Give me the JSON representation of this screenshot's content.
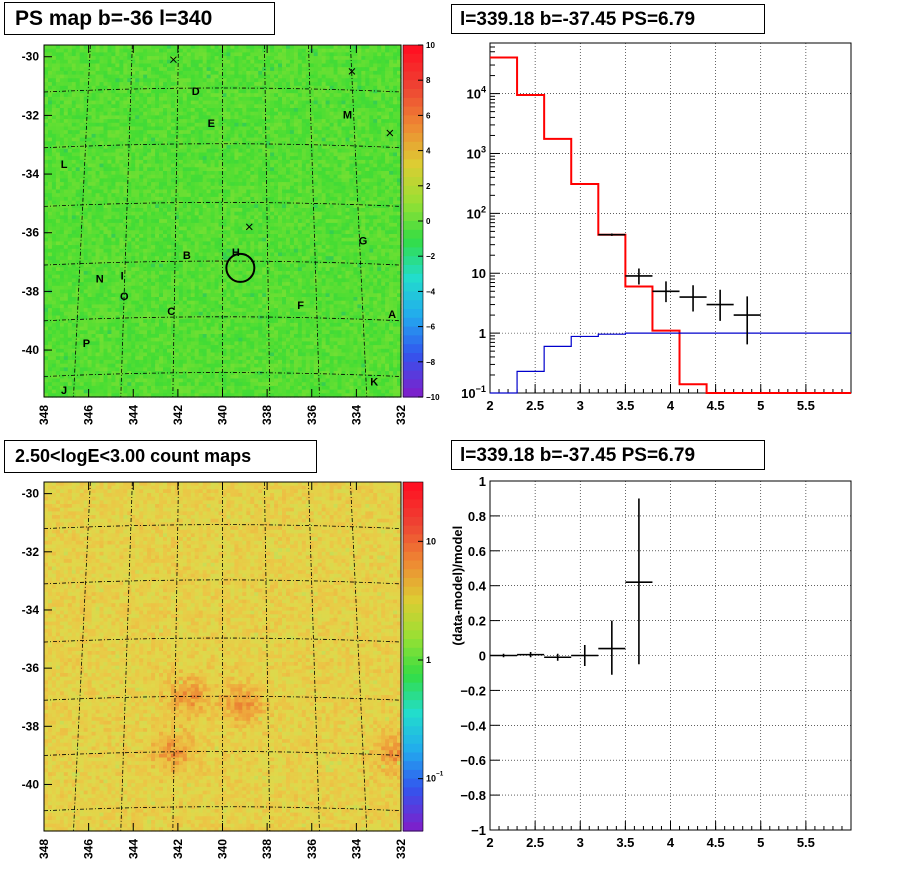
{
  "titles": {
    "ps_map": "PS map b=-36 l=340",
    "spectrum": "l=339.18 b=-37.45 PS=6.79",
    "count_map": "2.50<logE<3.00 count maps",
    "residual": "l=339.18 b=-37.45 PS=6.79"
  },
  "colors": {
    "model_line": "#ff0000",
    "background_line": "#0000cc",
    "data_points": "#000000",
    "ps_map_base": "#33dd33",
    "count_map_base": "#e8c840"
  },
  "chart_data": [
    {
      "type": "heatmap",
      "id": "ps_map",
      "title": "PS map b=-36 l=340",
      "x_ticks": [
        "348",
        "346",
        "344",
        "342",
        "340",
        "338",
        "336",
        "334",
        "332"
      ],
      "y_ticks": [
        "-30",
        "-32",
        "-34",
        "-36",
        "-38",
        "-40"
      ],
      "xlim": [
        348,
        332
      ],
      "ylim": [
        -41.6,
        -29.6
      ],
      "colorbar": {
        "range": [
          -10,
          10
        ],
        "ticks": [
          "10",
          "8",
          "6",
          "4",
          "2",
          "0",
          "−2",
          "−4",
          "−6",
          "−8",
          "−10"
        ]
      },
      "sources": [
        {
          "label": "D",
          "l": 341.2,
          "b": -31.3
        },
        {
          "label": "E",
          "l": 340.5,
          "b": -32.4
        },
        {
          "label": "M",
          "l": 334.4,
          "b": -32.1
        },
        {
          "label": "L",
          "l": 347.1,
          "b": -33.8
        },
        {
          "label": "G",
          "l": 333.7,
          "b": -36.4
        },
        {
          "label": "B",
          "l": 341.6,
          "b": -36.9
        },
        {
          "label": "H",
          "l": 339.4,
          "b": -36.8
        },
        {
          "label": "N",
          "l": 345.5,
          "b": -37.7
        },
        {
          "label": "I",
          "l": 344.5,
          "b": -37.6
        },
        {
          "label": "O",
          "l": 344.4,
          "b": -38.3
        },
        {
          "label": "C",
          "l": 342.3,
          "b": -38.8
        },
        {
          "label": "F",
          "l": 336.5,
          "b": -38.6
        },
        {
          "label": "A",
          "l": 332.4,
          "b": -38.9
        },
        {
          "label": "P",
          "l": 346.1,
          "b": -39.9
        },
        {
          "label": "K",
          "l": 333.2,
          "b": -41.2
        },
        {
          "label": "J",
          "l": 347.1,
          "b": -41.5
        }
      ],
      "crosses": [
        {
          "l": 342.2,
          "b": -30.1
        },
        {
          "l": 334.2,
          "b": -30.5
        },
        {
          "l": 332.5,
          "b": -32.6
        },
        {
          "l": 338.8,
          "b": -35.8
        }
      ],
      "circle": {
        "l": 339.2,
        "b": -37.2
      }
    },
    {
      "type": "line",
      "id": "spectrum",
      "title": "l=339.18 b=-37.45 PS=6.79",
      "xlim": [
        2,
        6
      ],
      "ylim": [
        0.1,
        70000
      ],
      "yscale": "log",
      "grid": true,
      "x_ticks": [
        "2",
        "2.5",
        "3",
        "3.5",
        "4",
        "4.5",
        "5",
        "5.5"
      ],
      "y_ticks": [
        "10^{-1}",
        "1",
        "10",
        "10^2",
        "10^3",
        "10^4"
      ],
      "series": [
        {
          "type": "step",
          "color": "#ff0000",
          "edges": [
            2.0,
            2.3,
            2.6,
            2.9,
            3.2,
            3.5,
            3.8,
            4.1,
            4.4,
            4.7,
            6.0
          ],
          "values": [
            40000,
            9500,
            1750,
            310,
            44,
            6,
            1.1,
            0.14,
            0.1,
            0.09
          ]
        },
        {
          "type": "step",
          "color": "#0000cc",
          "edges": [
            2.0,
            2.3,
            2.6,
            2.9,
            3.2,
            3.5,
            6.0
          ],
          "values": [
            0.09,
            0.23,
            0.6,
            0.88,
            0.96,
            1.0
          ]
        },
        {
          "type": "errorbar",
          "color": "#000000",
          "points": [
            {
              "x": 3.35,
              "y": 44,
              "xerr": 0.15,
              "ylo": 42,
              "yhi": 46
            },
            {
              "x": 3.65,
              "y": 9,
              "xerr": 0.15,
              "ylo": 6.5,
              "yhi": 12
            },
            {
              "x": 3.95,
              "y": 5,
              "xerr": 0.15,
              "ylo": 3.3,
              "yhi": 7.3
            },
            {
              "x": 4.25,
              "y": 4,
              "xerr": 0.15,
              "ylo": 2.3,
              "yhi": 6.3
            },
            {
              "x": 4.55,
              "y": 3,
              "xerr": 0.15,
              "ylo": 1.6,
              "yhi": 5.3
            },
            {
              "x": 4.85,
              "y": 2,
              "xerr": 0.15,
              "ylo": 0.65,
              "yhi": 4.1
            }
          ]
        }
      ]
    },
    {
      "type": "heatmap",
      "id": "count_map",
      "title": "2.50<logE<3.00 count maps",
      "x_ticks": [
        "348",
        "346",
        "344",
        "342",
        "340",
        "338",
        "336",
        "334",
        "332"
      ],
      "y_ticks": [
        "-30",
        "-32",
        "-34",
        "-36",
        "-38",
        "-40"
      ],
      "xlim": [
        348,
        332
      ],
      "ylim": [
        -41.6,
        -29.6
      ],
      "colorbar": {
        "scale": "log",
        "ticks": [
          "10",
          "1",
          "10^{-1}"
        ]
      },
      "hotspots": [
        {
          "l": 341.6,
          "b": -36.9
        },
        {
          "l": 342.3,
          "b": -38.8
        },
        {
          "l": 332.4,
          "b": -38.9
        },
        {
          "l": 339.2,
          "b": -37.2
        }
      ]
    },
    {
      "type": "scatter",
      "id": "residual",
      "title": "l=339.18 b=-37.45 PS=6.79",
      "xlim": [
        2,
        6
      ],
      "ylim": [
        -1,
        1
      ],
      "grid": true,
      "ylabel": "(data-model)/model",
      "x_ticks": [
        "2",
        "2.5",
        "3",
        "3.5",
        "4",
        "4.5",
        "5",
        "5.5"
      ],
      "y_ticks": [
        "1",
        "0.8",
        "0.6",
        "0.4",
        "0.2",
        "0",
        "−0.2",
        "−0.4",
        "−0.6",
        "−0.8",
        "−1"
      ],
      "points": [
        {
          "x": 2.15,
          "y": 0.0,
          "xerr": 0.15,
          "ylo": -0.01,
          "yhi": 0.01
        },
        {
          "x": 2.45,
          "y": 0.005,
          "xerr": 0.15,
          "ylo": -0.01,
          "yhi": 0.02
        },
        {
          "x": 2.75,
          "y": -0.01,
          "xerr": 0.15,
          "ylo": -0.03,
          "yhi": 0.01
        },
        {
          "x": 3.05,
          "y": 0.0,
          "xerr": 0.15,
          "ylo": -0.06,
          "yhi": 0.06
        },
        {
          "x": 3.35,
          "y": 0.04,
          "xerr": 0.15,
          "ylo": -0.11,
          "yhi": 0.2
        },
        {
          "x": 3.65,
          "y": 0.42,
          "xerr": 0.15,
          "ylo": -0.05,
          "yhi": 0.9
        }
      ]
    }
  ]
}
